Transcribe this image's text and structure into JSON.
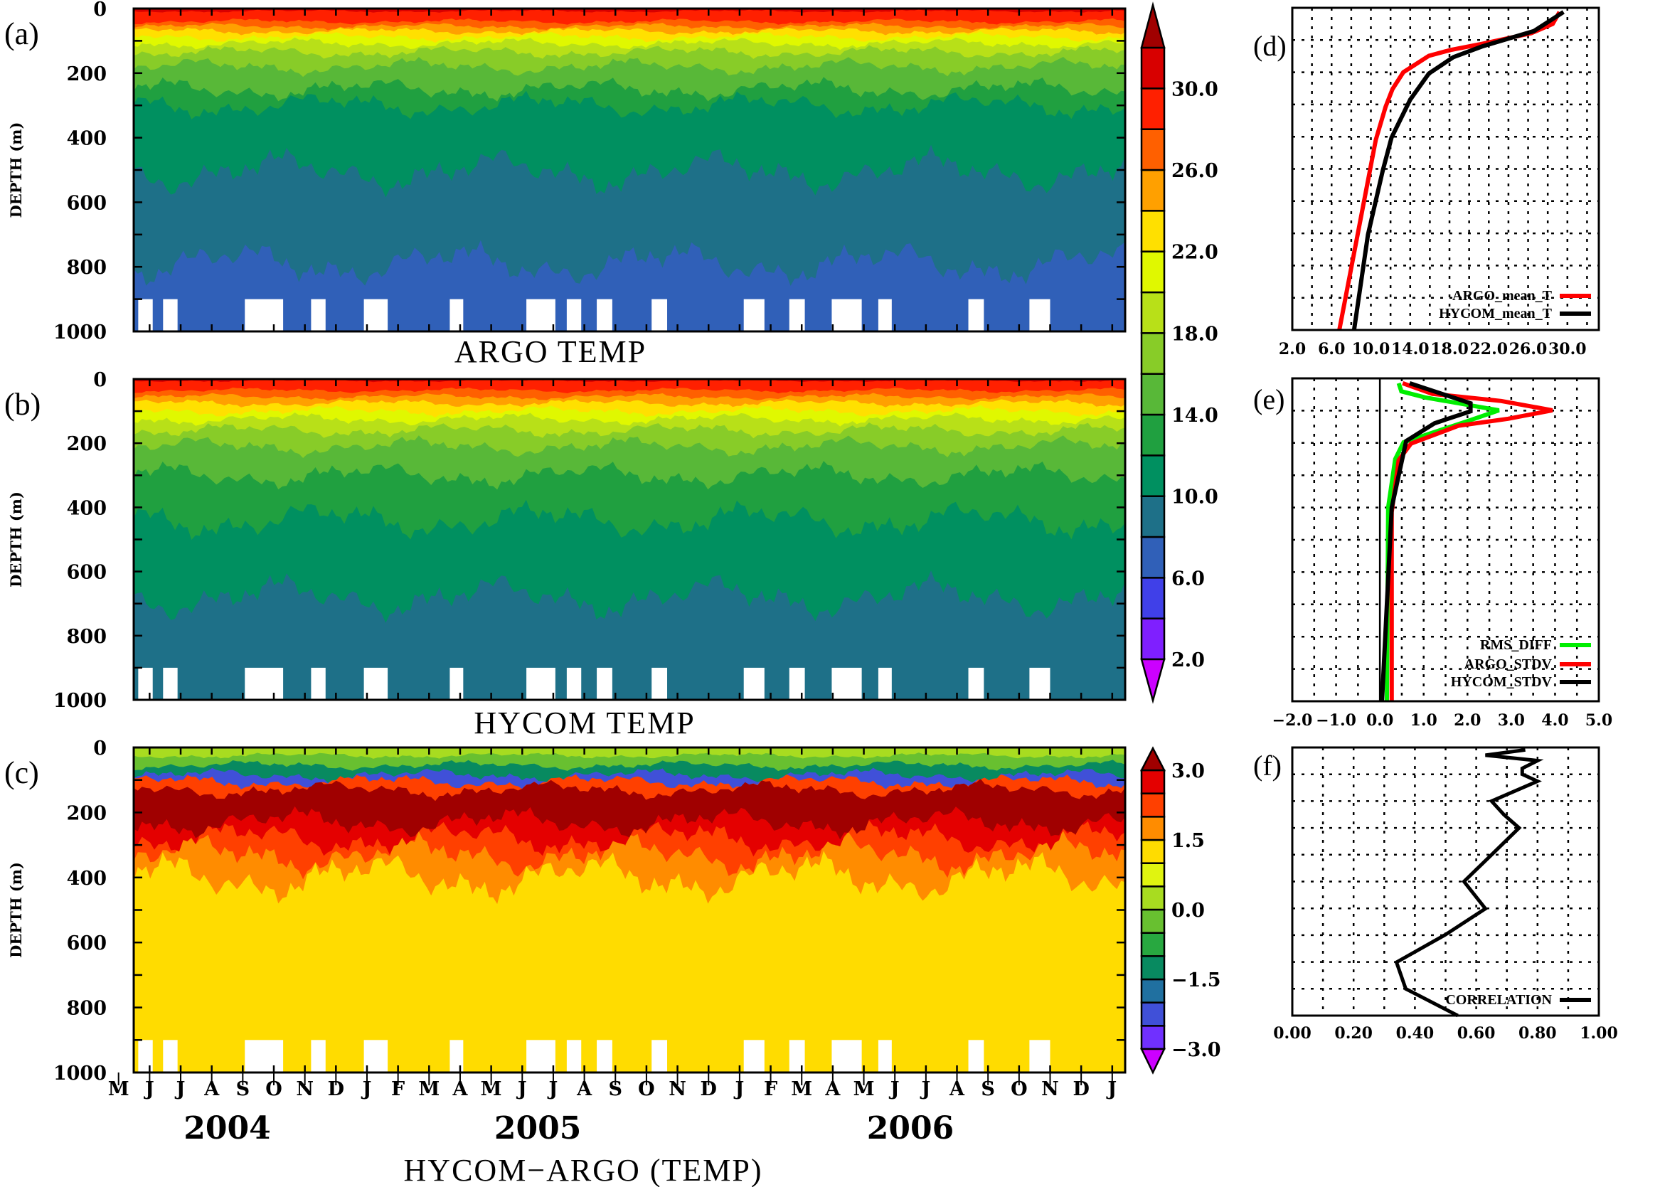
{
  "colorbars": {
    "temperature": {
      "min": 2,
      "max": 32,
      "step": 2,
      "colors": [
        "#7f1fff",
        "#4040e8",
        "#3060b8",
        "#1e7088",
        "#009060",
        "#20a040",
        "#58b838",
        "#88cc28",
        "#b8e018",
        "#e0f800",
        "#ffe000",
        "#ffa000",
        "#ff6000",
        "#ff2000",
        "#d80000"
      ],
      "over": "#a00000",
      "under": "#cc00ff",
      "label_values": [
        2,
        6,
        10,
        14,
        18,
        22,
        26,
        30
      ],
      "labels": [
        "2.0",
        "6.0",
        "10.0",
        "14.0",
        "18.0",
        "22.0",
        "26.0",
        "30.0"
      ]
    },
    "difference": {
      "min": -3,
      "max": 3,
      "step": 0.5,
      "colors": [
        "#7030ff",
        "#4050d8",
        "#2070a0",
        "#088a60",
        "#28a840",
        "#68c030",
        "#a8dc20",
        "#e0f410",
        "#ffdc00",
        "#ff8c00",
        "#ff4000",
        "#e40000"
      ],
      "over": "#a00000",
      "under": "#cc00ff",
      "label_values": [
        -3,
        -1.5,
        0,
        1.5,
        3
      ],
      "labels": [
        "−3.0",
        "−1.5",
        "0.0",
        "1.5",
        "3.0"
      ]
    }
  },
  "time_axis": {
    "months": [
      "M",
      "J",
      "J",
      "A",
      "S",
      "O",
      "N",
      "D",
      "J",
      "F",
      "M",
      "A",
      "M",
      "J",
      "J",
      "A",
      "S",
      "O",
      "N",
      "D",
      "J",
      "F",
      "M",
      "A",
      "M",
      "J",
      "J",
      "A",
      "S",
      "O",
      "N",
      "D",
      "J"
    ],
    "years": [
      "2004",
      "2005",
      "2006"
    ],
    "start": "2004-05-16",
    "end": "2007-01-13"
  },
  "no_data_gaps": {
    "depth_range_m": [
      900,
      1000
    ],
    "periods": [
      [
        "2004-05-20",
        "2004-06-04"
      ],
      [
        "2004-06-14",
        "2004-06-28"
      ],
      [
        "2004-09-03",
        "2004-10-10"
      ],
      [
        "2004-11-07",
        "2004-11-21"
      ],
      [
        "2004-12-28",
        "2005-01-21"
      ],
      [
        "2005-03-21",
        "2005-04-04"
      ],
      [
        "2005-06-05",
        "2005-07-03"
      ],
      [
        "2005-07-14",
        "2005-07-28"
      ],
      [
        "2005-08-13",
        "2005-08-28"
      ],
      [
        "2005-10-06",
        "2005-10-21"
      ],
      [
        "2006-01-05",
        "2006-01-25"
      ],
      [
        "2006-02-19",
        "2006-03-04"
      ],
      [
        "2006-03-30",
        "2006-04-29"
      ],
      [
        "2006-05-15",
        "2006-05-28"
      ],
      [
        "2006-08-12",
        "2006-08-27"
      ],
      [
        "2006-10-11",
        "2006-10-31"
      ]
    ]
  },
  "chart_data": [
    {
      "panel_label": "(a)",
      "type": "heatmap",
      "title": "ARGO TEMP",
      "ylabel": "DEPTH (m)",
      "ylim": [
        0,
        1000
      ],
      "yticks": [
        "0",
        "200",
        "400",
        "600",
        "800",
        "1000"
      ],
      "colorbar": "temperature",
      "layers": [
        {
          "band": [
            30,
            32
          ],
          "bottom_m": 8
        },
        {
          "band": [
            28,
            30
          ],
          "bottom_m": 40
        },
        {
          "band": [
            26,
            28
          ],
          "bottom_m": 55
        },
        {
          "band": [
            24,
            26
          ],
          "bottom_m": 70
        },
        {
          "band": [
            22,
            24
          ],
          "bottom_m": 88
        },
        {
          "band": [
            20,
            22
          ],
          "bottom_m": 108
        },
        {
          "band": [
            18,
            20
          ],
          "bottom_m": 135
        },
        {
          "band": [
            16,
            18
          ],
          "bottom_m": 180
        },
        {
          "band": [
            14,
            16
          ],
          "bottom_m": 250
        },
        {
          "band": [
            12,
            14
          ],
          "bottom_m": 300
        },
        {
          "band": [
            10,
            12
          ],
          "bottom_m": 505
        },
        {
          "band": [
            8,
            10
          ],
          "bottom_m": 790
        },
        {
          "band": [
            6,
            8
          ],
          "bottom_m": 1000
        }
      ]
    },
    {
      "panel_label": "(b)",
      "type": "heatmap",
      "title": "HYCOM TEMP",
      "ylabel": "DEPTH (m)",
      "ylim": [
        0,
        1000
      ],
      "yticks": [
        "0",
        "200",
        "400",
        "600",
        "800",
        "1000"
      ],
      "colorbar": "temperature",
      "layers": [
        {
          "band": [
            30,
            32
          ],
          "bottom_m": 5
        },
        {
          "band": [
            28,
            30
          ],
          "bottom_m": 35
        },
        {
          "band": [
            26,
            28
          ],
          "bottom_m": 55
        },
        {
          "band": [
            24,
            26
          ],
          "bottom_m": 75
        },
        {
          "band": [
            22,
            24
          ],
          "bottom_m": 100
        },
        {
          "band": [
            20,
            22
          ],
          "bottom_m": 125
        },
        {
          "band": [
            18,
            20
          ],
          "bottom_m": 160
        },
        {
          "band": [
            16,
            18
          ],
          "bottom_m": 210
        },
        {
          "band": [
            14,
            16
          ],
          "bottom_m": 300
        },
        {
          "band": [
            12,
            14
          ],
          "bottom_m": 440
        },
        {
          "band": [
            10,
            12
          ],
          "bottom_m": 680
        },
        {
          "band": [
            8,
            10
          ],
          "bottom_m": 1000
        }
      ]
    },
    {
      "panel_label": "(c)",
      "type": "heatmap",
      "title": "HYCOM−ARGO (TEMP)",
      "ylabel": "DEPTH (m)",
      "ylim": [
        0,
        1000
      ],
      "yticks": [
        "0",
        "200",
        "400",
        "600",
        "800",
        "1000"
      ],
      "colorbar": "difference",
      "layers": [
        {
          "band": [
            0,
            0.5
          ],
          "bottom_m": 25
        },
        {
          "band": [
            -0.5,
            0
          ],
          "bottom_m": 55
        },
        {
          "band": [
            -1.5,
            -1
          ],
          "bottom_m": 85
        },
        {
          "band": [
            -2.5,
            -2
          ],
          "bottom_m": 105
        },
        {
          "band": [
            2,
            2.5
          ],
          "bottom_m": 130
        },
        {
          "band": [
            3,
            null
          ],
          "bottom_m": 230
        },
        {
          "band": [
            2.5,
            3
          ],
          "bottom_m": 280
        },
        {
          "band": [
            2,
            2.5
          ],
          "bottom_m": 330
        },
        {
          "band": [
            1.5,
            2
          ],
          "bottom_m": 400
        },
        {
          "band": [
            1,
            1.5
          ],
          "bottom_m": 1000
        }
      ]
    },
    {
      "panel_label": "(d)",
      "type": "line",
      "xlim": [
        2,
        33.2
      ],
      "ylim": [
        0,
        1000
      ],
      "xticks": [
        2,
        6,
        10,
        14,
        18,
        22,
        26,
        30
      ],
      "xtick_labels": [
        "2.0",
        "6.0",
        "10.0",
        "14.0",
        "18.0",
        "22.0",
        "26.0",
        "30.0"
      ],
      "grid": true,
      "legend": "bottom-right",
      "series": [
        {
          "name": "ARGO_mean_T",
          "color": "#ff0000",
          "value": [
            29.2,
            28.5,
            26.3,
            21.3,
            18.1,
            15.9,
            13.3,
            12.2,
            11.5,
            10.5,
            6.8
          ],
          "depth": [
            13,
            50,
            79,
            112,
            131,
            149,
            200,
            252,
            307,
            410,
            998
          ]
        },
        {
          "name": "HYCOM_mean_T",
          "color": "#000000",
          "value": [
            29.6,
            26.6,
            21.3,
            18.4,
            15.9,
            14.0,
            12.1,
            11.2,
            9.7,
            8.3
          ],
          "depth": [
            13,
            72,
            120,
            153,
            204,
            285,
            403,
            506,
            704,
            998
          ]
        }
      ]
    },
    {
      "panel_label": "(e)",
      "type": "line",
      "xlim": [
        -2,
        5
      ],
      "ylim": [
        0,
        1000
      ],
      "xticks": [
        -2,
        -1,
        0,
        1,
        2,
        3,
        4,
        5
      ],
      "xtick_labels": [
        "−2.0",
        "−1.0",
        "0.0",
        "1.0",
        "2.0",
        "3.0",
        "4.0",
        "5.0"
      ],
      "grid": true,
      "legend": "bottom-right",
      "series": [
        {
          "name": "RMS_DIFF",
          "color": "#00ee00",
          "value": [
            0.43,
            0.49,
            1.03,
            2.72,
            2.01,
            0.54,
            0.35,
            0.19,
            0.16
          ],
          "depth": [
            15,
            40,
            59,
            99,
            132,
            198,
            250,
            400,
            998
          ]
        },
        {
          "name": "ARGO_STDV",
          "color": "#ff0000",
          "value": [
            0.52,
            1.2,
            2.77,
            3.94,
            2.93,
            1.79,
            0.71,
            0.43,
            0.27,
            0.27
          ],
          "depth": [
            15,
            48,
            70,
            99,
            125,
            147,
            202,
            253,
            414,
            998
          ]
        },
        {
          "name": "HYCOM_STDV",
          "color": "#000000",
          "value": [
            0.68,
            2.07,
            2.07,
            1.25,
            0.6,
            0.27,
            0.05
          ],
          "depth": [
            15,
            77,
            102,
            139,
            194,
            400,
            998
          ]
        }
      ]
    },
    {
      "panel_label": "(f)",
      "type": "line",
      "xlim": [
        0,
        1
      ],
      "ylim": [
        0,
        1000
      ],
      "xticks": [
        0,
        0.2,
        0.4,
        0.6,
        0.8,
        1.0
      ],
      "xtick_labels": [
        "0.00",
        "0.20",
        "0.40",
        "0.60",
        "0.80",
        "1.00"
      ],
      "grid": true,
      "legend": "bottom-right",
      "series": [
        {
          "name": "CORRELATION",
          "color": "#000000",
          "value": [
            0.76,
            0.63,
            0.8,
            0.75,
            0.75,
            0.8,
            0.65,
            0.69,
            0.74,
            0.65,
            0.56,
            0.63,
            0.5,
            0.34,
            0.37,
            0.54
          ],
          "depth": [
            9,
            29,
            49,
            78,
            100,
            126,
            200,
            250,
            300,
            400,
            500,
            601,
            698,
            801,
            900,
            1000
          ]
        }
      ]
    }
  ]
}
